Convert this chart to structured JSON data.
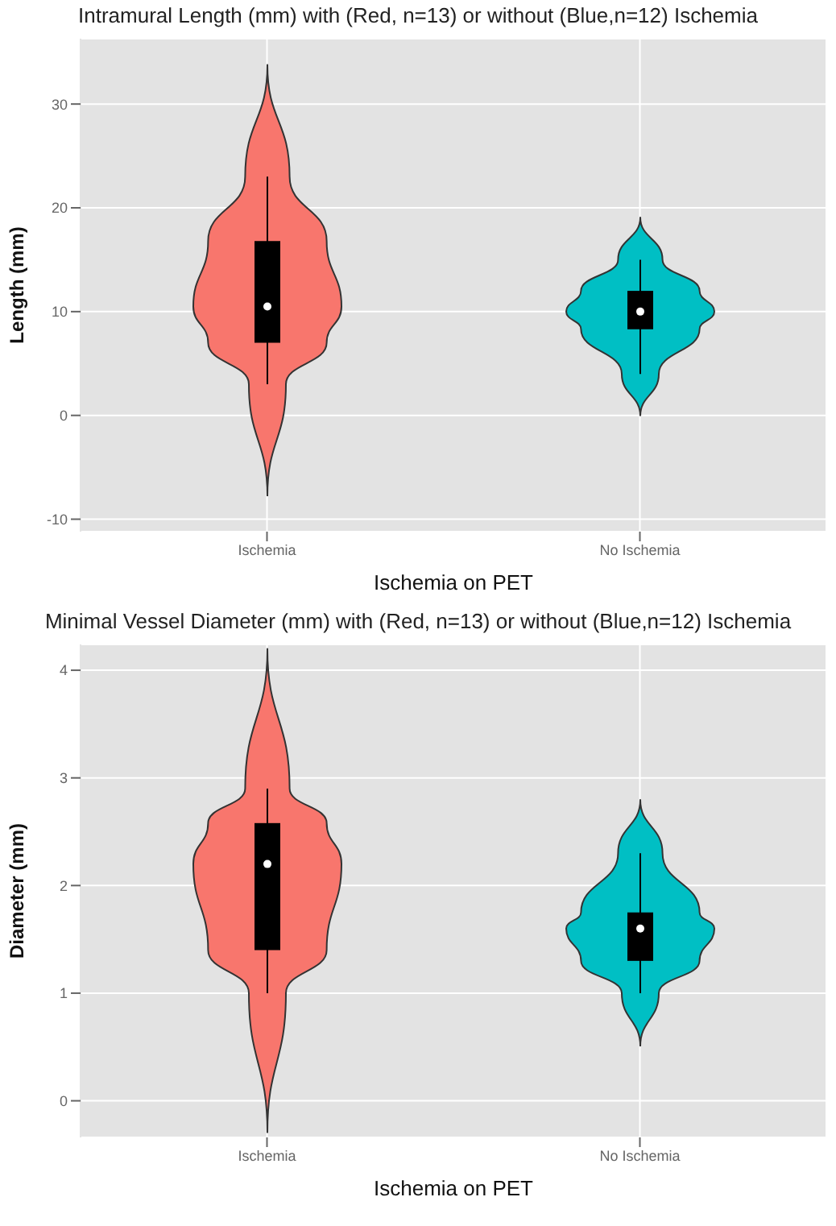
{
  "chart_data": [
    {
      "type": "box",
      "title": "Intramural Length (mm) with (Red, n=13) or without (Blue,n=12) Ischemia",
      "xlabel": "Ischemia on PET",
      "ylabel": "Length (mm)",
      "categories": [
        "Ischemia",
        "No Ischemia"
      ],
      "boxes": [
        {
          "low": 3,
          "q1": 7,
          "median": 10.5,
          "q3": 16.8,
          "high": 23
        },
        {
          "low": 4,
          "q1": 8.3,
          "median": 10,
          "q3": 12,
          "high": 15
        }
      ],
      "colors": [
        "#000000",
        "#000000"
      ],
      "ylim": [
        -11.2,
        36.3
      ],
      "yticks": [
        -10,
        0,
        10,
        20,
        30
      ],
      "grid": true
    },
    {
      "type": "box",
      "title": "Minimal Vessel Diameter (mm) with (Red, n=13) or without (Blue,n=12) Ischemia",
      "xlabel": "Ischemia on PET",
      "ylabel": "Diameter (mm)",
      "categories": [
        "Ischemia",
        "No Ischemia"
      ],
      "boxes": [
        {
          "low": 1,
          "q1": 1.4,
          "median": 2.2,
          "q3": 2.58,
          "high": 2.9
        },
        {
          "low": 1,
          "q1": 1.3,
          "median": 1.6,
          "q3": 1.75,
          "high": 2.3
        }
      ],
      "colors": [
        "#000000",
        "#000000"
      ],
      "ylim": [
        -0.34,
        4.24
      ],
      "yticks": [
        0,
        1,
        2,
        3,
        4
      ],
      "grid": true
    }
  ]
}
